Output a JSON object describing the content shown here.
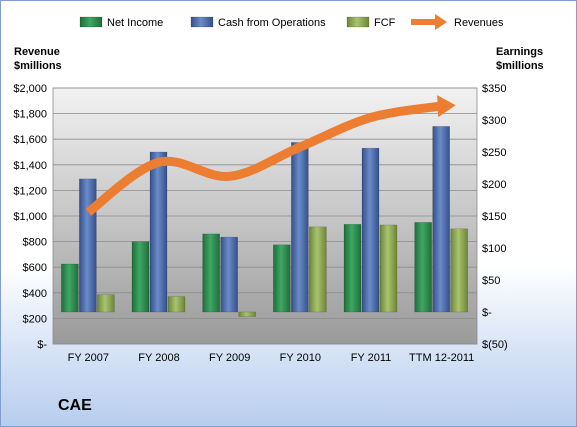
{
  "company_label": "CAE",
  "chart_data": {
    "type": "bar",
    "categories": [
      "FY 2007",
      "FY 2008",
      "FY 2009",
      "FY 2010",
      "FY 2011",
      "TTM 12-2011"
    ],
    "left_axis": {
      "title_line1": "Revenue",
      "title_line2": "$millions",
      "ylim": [
        0,
        2000
      ],
      "ticks": [
        "$-",
        "$200",
        "$400",
        "$600",
        "$800",
        "$1,000",
        "$1,200",
        "$1,400",
        "$1,600",
        "$1,800",
        "$2,000"
      ]
    },
    "right_axis": {
      "title_line1": "Earnings",
      "title_line2": "$millions",
      "ylim": [
        -50,
        350
      ],
      "ticks": [
        "$(50)",
        "$-",
        "$50",
        "$100",
        "$150",
        "$200",
        "$250",
        "$300",
        "$350"
      ]
    },
    "series": [
      {
        "name": "Net Income",
        "axis": "right",
        "type": "bar",
        "color": "#2e8b4e",
        "values": [
          75,
          110,
          122,
          105,
          137,
          140
        ]
      },
      {
        "name": "Cash from Operations",
        "axis": "right",
        "type": "bar",
        "color": "#4f6fb0",
        "values": [
          208,
          250,
          117,
          265,
          256,
          290
        ]
      },
      {
        "name": "FCF",
        "axis": "right",
        "type": "bar",
        "color": "#8faa58",
        "values": [
          27,
          24,
          -7,
          133,
          136,
          130
        ]
      },
      {
        "name": "Revenues",
        "axis": "left",
        "type": "line",
        "color": "#ed7d31",
        "values": [
          1030,
          1420,
          1310,
          1540,
          1770,
          1860
        ]
      }
    ],
    "legend_position": "top",
    "grid": true
  }
}
